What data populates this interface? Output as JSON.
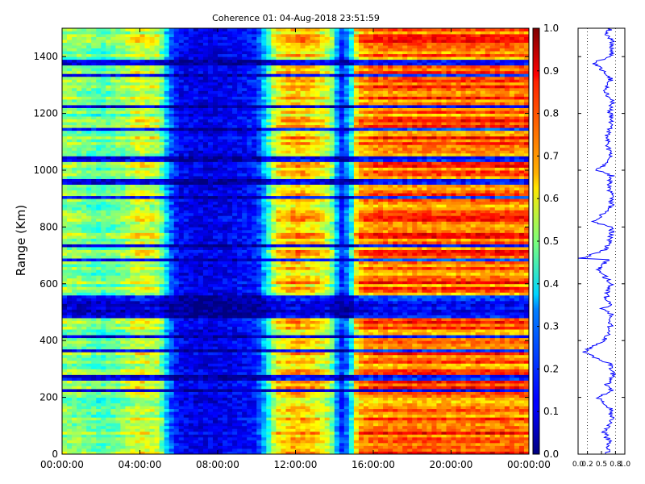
{
  "chart_data": [
    {
      "type": "heatmap",
      "title": "Coherence 01: 04-Aug-2018 23:51:59",
      "xlabel": "",
      "ylabel": "Range (Km)",
      "x_ticks": [
        "00:00:00",
        "04:00:00",
        "08:00:00",
        "12:00:00",
        "16:00:00",
        "20:00:00",
        "00:00:00"
      ],
      "x_range_hours": [
        0,
        24
      ],
      "y_ticks": [
        0,
        200,
        400,
        600,
        800,
        1000,
        1200,
        1400
      ],
      "ylim": [
        0,
        1500
      ],
      "colormap": "jet",
      "value_range": [
        0.0,
        1.0
      ],
      "time_profile": {
        "hours": [
          0,
          1,
          2,
          3,
          4,
          5,
          5.5,
          6,
          7,
          8,
          9,
          10,
          10.5,
          11,
          12,
          13,
          13.8,
          14.3,
          14.8,
          15.2,
          16,
          18,
          20,
          22,
          24
        ],
        "coherence": [
          0.52,
          0.5,
          0.45,
          0.5,
          0.6,
          0.55,
          0.25,
          0.12,
          0.1,
          0.1,
          0.12,
          0.15,
          0.35,
          0.62,
          0.7,
          0.66,
          0.55,
          0.15,
          0.3,
          0.72,
          0.76,
          0.78,
          0.77,
          0.78,
          0.77
        ]
      },
      "low_coherence_range_bands_km": [
        225,
        270,
        365,
        415,
        490,
        510,
        530,
        550,
        685,
        735,
        905,
        960,
        1040,
        1145,
        1225,
        1335,
        1378
      ]
    },
    {
      "type": "line",
      "title": "",
      "xlabel": "",
      "ylabel": "",
      "xlim": [
        0.0,
        1.0
      ],
      "x_ticks": [
        "0.0",
        "0.2",
        "0.5",
        "0.8",
        "1.0"
      ],
      "ylim": [
        0,
        1500
      ],
      "series": [
        {
          "color": "#0000ff",
          "x": [
            0.62,
            0.68,
            0.55,
            0.72,
            0.7,
            0.4,
            0.65,
            0.73,
            0.6,
            0.75,
            0.66,
            0.1,
            0.55,
            0.7,
            0.66,
            0.74,
            0.5,
            0.72,
            0.6,
            0.7,
            0.45,
            0.65,
            0.05,
            0.6,
            0.7,
            0.72,
            0.3,
            0.68,
            0.74,
            0.65,
            0.72,
            0.42,
            0.7,
            0.65,
            0.6,
            0.72,
            0.68,
            0.73,
            0.55,
            0.7,
            0.35,
            0.68,
            0.72,
            0.74,
            0.58,
            0.7
          ],
          "y": [
            0,
            40,
            80,
            120,
            160,
            200,
            215,
            225,
            240,
            280,
            320,
            360,
            400,
            440,
            470,
            490,
            510,
            530,
            550,
            600,
            650,
            685,
            690,
            720,
            760,
            800,
            820,
            860,
            900,
            940,
            980,
            1000,
            1040,
            1080,
            1120,
            1160,
            1200,
            1240,
            1280,
            1320,
            1378,
            1400,
            1420,
            1450,
            1480,
            1500
          ]
        }
      ]
    }
  ],
  "colorbar": {
    "ticks": [
      "0.0",
      "0.1",
      "0.2",
      "0.3",
      "0.4",
      "0.5",
      "0.6",
      "0.7",
      "0.8",
      "0.9",
      "1.0"
    ]
  }
}
